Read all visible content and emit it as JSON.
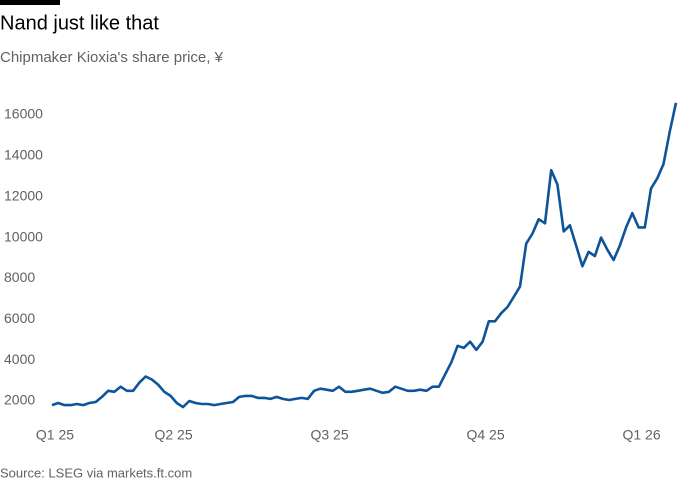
{
  "chart_data": {
    "type": "line",
    "title": "Nand just like that",
    "subtitle": "Chipmaker Kioxia's share price, ¥",
    "source": "Source: LSEG via markets.ft.com",
    "categories": [
      "Q1 25",
      null,
      null,
      null,
      null,
      null,
      null,
      null,
      null,
      null,
      null,
      null,
      null,
      null,
      null,
      null,
      null,
      null,
      null,
      "Q2 25",
      null,
      null,
      null,
      null,
      null,
      null,
      null,
      null,
      null,
      null,
      null,
      null,
      null,
      null,
      null,
      null,
      null,
      null,
      null,
      null,
      null,
      null,
      null,
      null,
      "Q3 25",
      null,
      null,
      null,
      null,
      null,
      null,
      null,
      null,
      null,
      null,
      null,
      null,
      null,
      null,
      null,
      null,
      null,
      null,
      null,
      null,
      null,
      null,
      null,
      null,
      "Q4 25",
      null,
      null,
      null,
      null,
      null,
      null,
      null,
      null,
      null,
      null,
      null,
      null,
      null,
      null,
      null,
      null,
      null,
      null,
      null,
      null,
      null,
      null,
      null,
      null,
      "Q1 26",
      null,
      null,
      null,
      null,
      null,
      null
    ],
    "values": [
      1800,
      1900,
      1800,
      1800,
      1850,
      1800,
      1900,
      1950,
      2200,
      2500,
      2450,
      2700,
      2500,
      2500,
      2900,
      3200,
      3050,
      2800,
      2450,
      2250,
      1900,
      1700,
      2000,
      1900,
      1850,
      1850,
      1800,
      1850,
      1900,
      1950,
      2200,
      2250,
      2250,
      2150,
      2150,
      2100,
      2200,
      2100,
      2050,
      2100,
      2150,
      2100,
      2500,
      2600,
      2550,
      2500,
      2700,
      2450,
      2450,
      2500,
      2550,
      2600,
      2500,
      2400,
      2450,
      2700,
      2600,
      2500,
      2500,
      2550,
      2500,
      2700,
      2700,
      3300,
      3900,
      4700,
      4600,
      4900,
      4500,
      4900,
      5900,
      5900,
      6300,
      6600,
      7100,
      7600,
      9700,
      10200,
      10900,
      10700,
      13300,
      12600,
      10300,
      10600,
      9600,
      8600,
      9300,
      9100,
      10000,
      9400,
      8900,
      9600,
      10500,
      11200,
      10500,
      10500,
      12400,
      12900,
      13600,
      15200,
      16600
    ],
    "color": "#0f5499",
    "ylim": [
      1000,
      17000
    ],
    "yticks": [
      2000,
      4000,
      6000,
      8000,
      10000,
      12000,
      14000,
      16000
    ],
    "grid": false
  }
}
